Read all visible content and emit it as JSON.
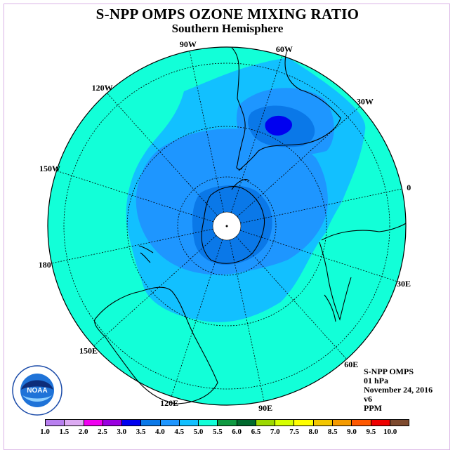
{
  "title": "S-NPP OMPS OZONE MIXING RATIO",
  "subtitle": "Southern Hemisphere",
  "longitude_labels": [
    {
      "text": "0",
      "lon": 0
    },
    {
      "text": "30E",
      "lon": 30
    },
    {
      "text": "60E",
      "lon": 60
    },
    {
      "text": "90E",
      "lon": 90
    },
    {
      "text": "120E",
      "lon": 120
    },
    {
      "text": "150E",
      "lon": 150
    },
    {
      "text": "180",
      "lon": 180
    },
    {
      "text": "150W",
      "lon": -150
    },
    {
      "text": "120W",
      "lon": -120
    },
    {
      "text": "90W",
      "lon": -90
    },
    {
      "text": "60W",
      "lon": -60
    },
    {
      "text": "30W",
      "lon": -30
    }
  ],
  "info": {
    "instrument": "S-NPP OMPS",
    "level": "01 hPa",
    "date": "November 24, 2016",
    "version": "v6",
    "units": "PPM"
  },
  "logo_text": "NOAA",
  "colorbar": {
    "ticks": [
      "1.0",
      "1.5",
      "2.0",
      "2.5",
      "3.0",
      "3.5",
      "4.0",
      "4.5",
      "5.0",
      "5.5",
      "6.0",
      "6.5",
      "7.0",
      "7.5",
      "8.0",
      "8.5",
      "9.0",
      "9.5",
      "10.0"
    ],
    "colors": [
      "#b87fef",
      "#dcaaf2",
      "#f000f0",
      "#9a00e0",
      "#0000f0",
      "#0a78e8",
      "#1e96ff",
      "#12c0ff",
      "#12ffd8",
      "#0f9a41",
      "#006a2d",
      "#9cd800",
      "#d6ff00",
      "#ffff00",
      "#f3c600",
      "#f49a00",
      "#fe5800",
      "#ee0000",
      "#7e4a2e"
    ]
  }
}
